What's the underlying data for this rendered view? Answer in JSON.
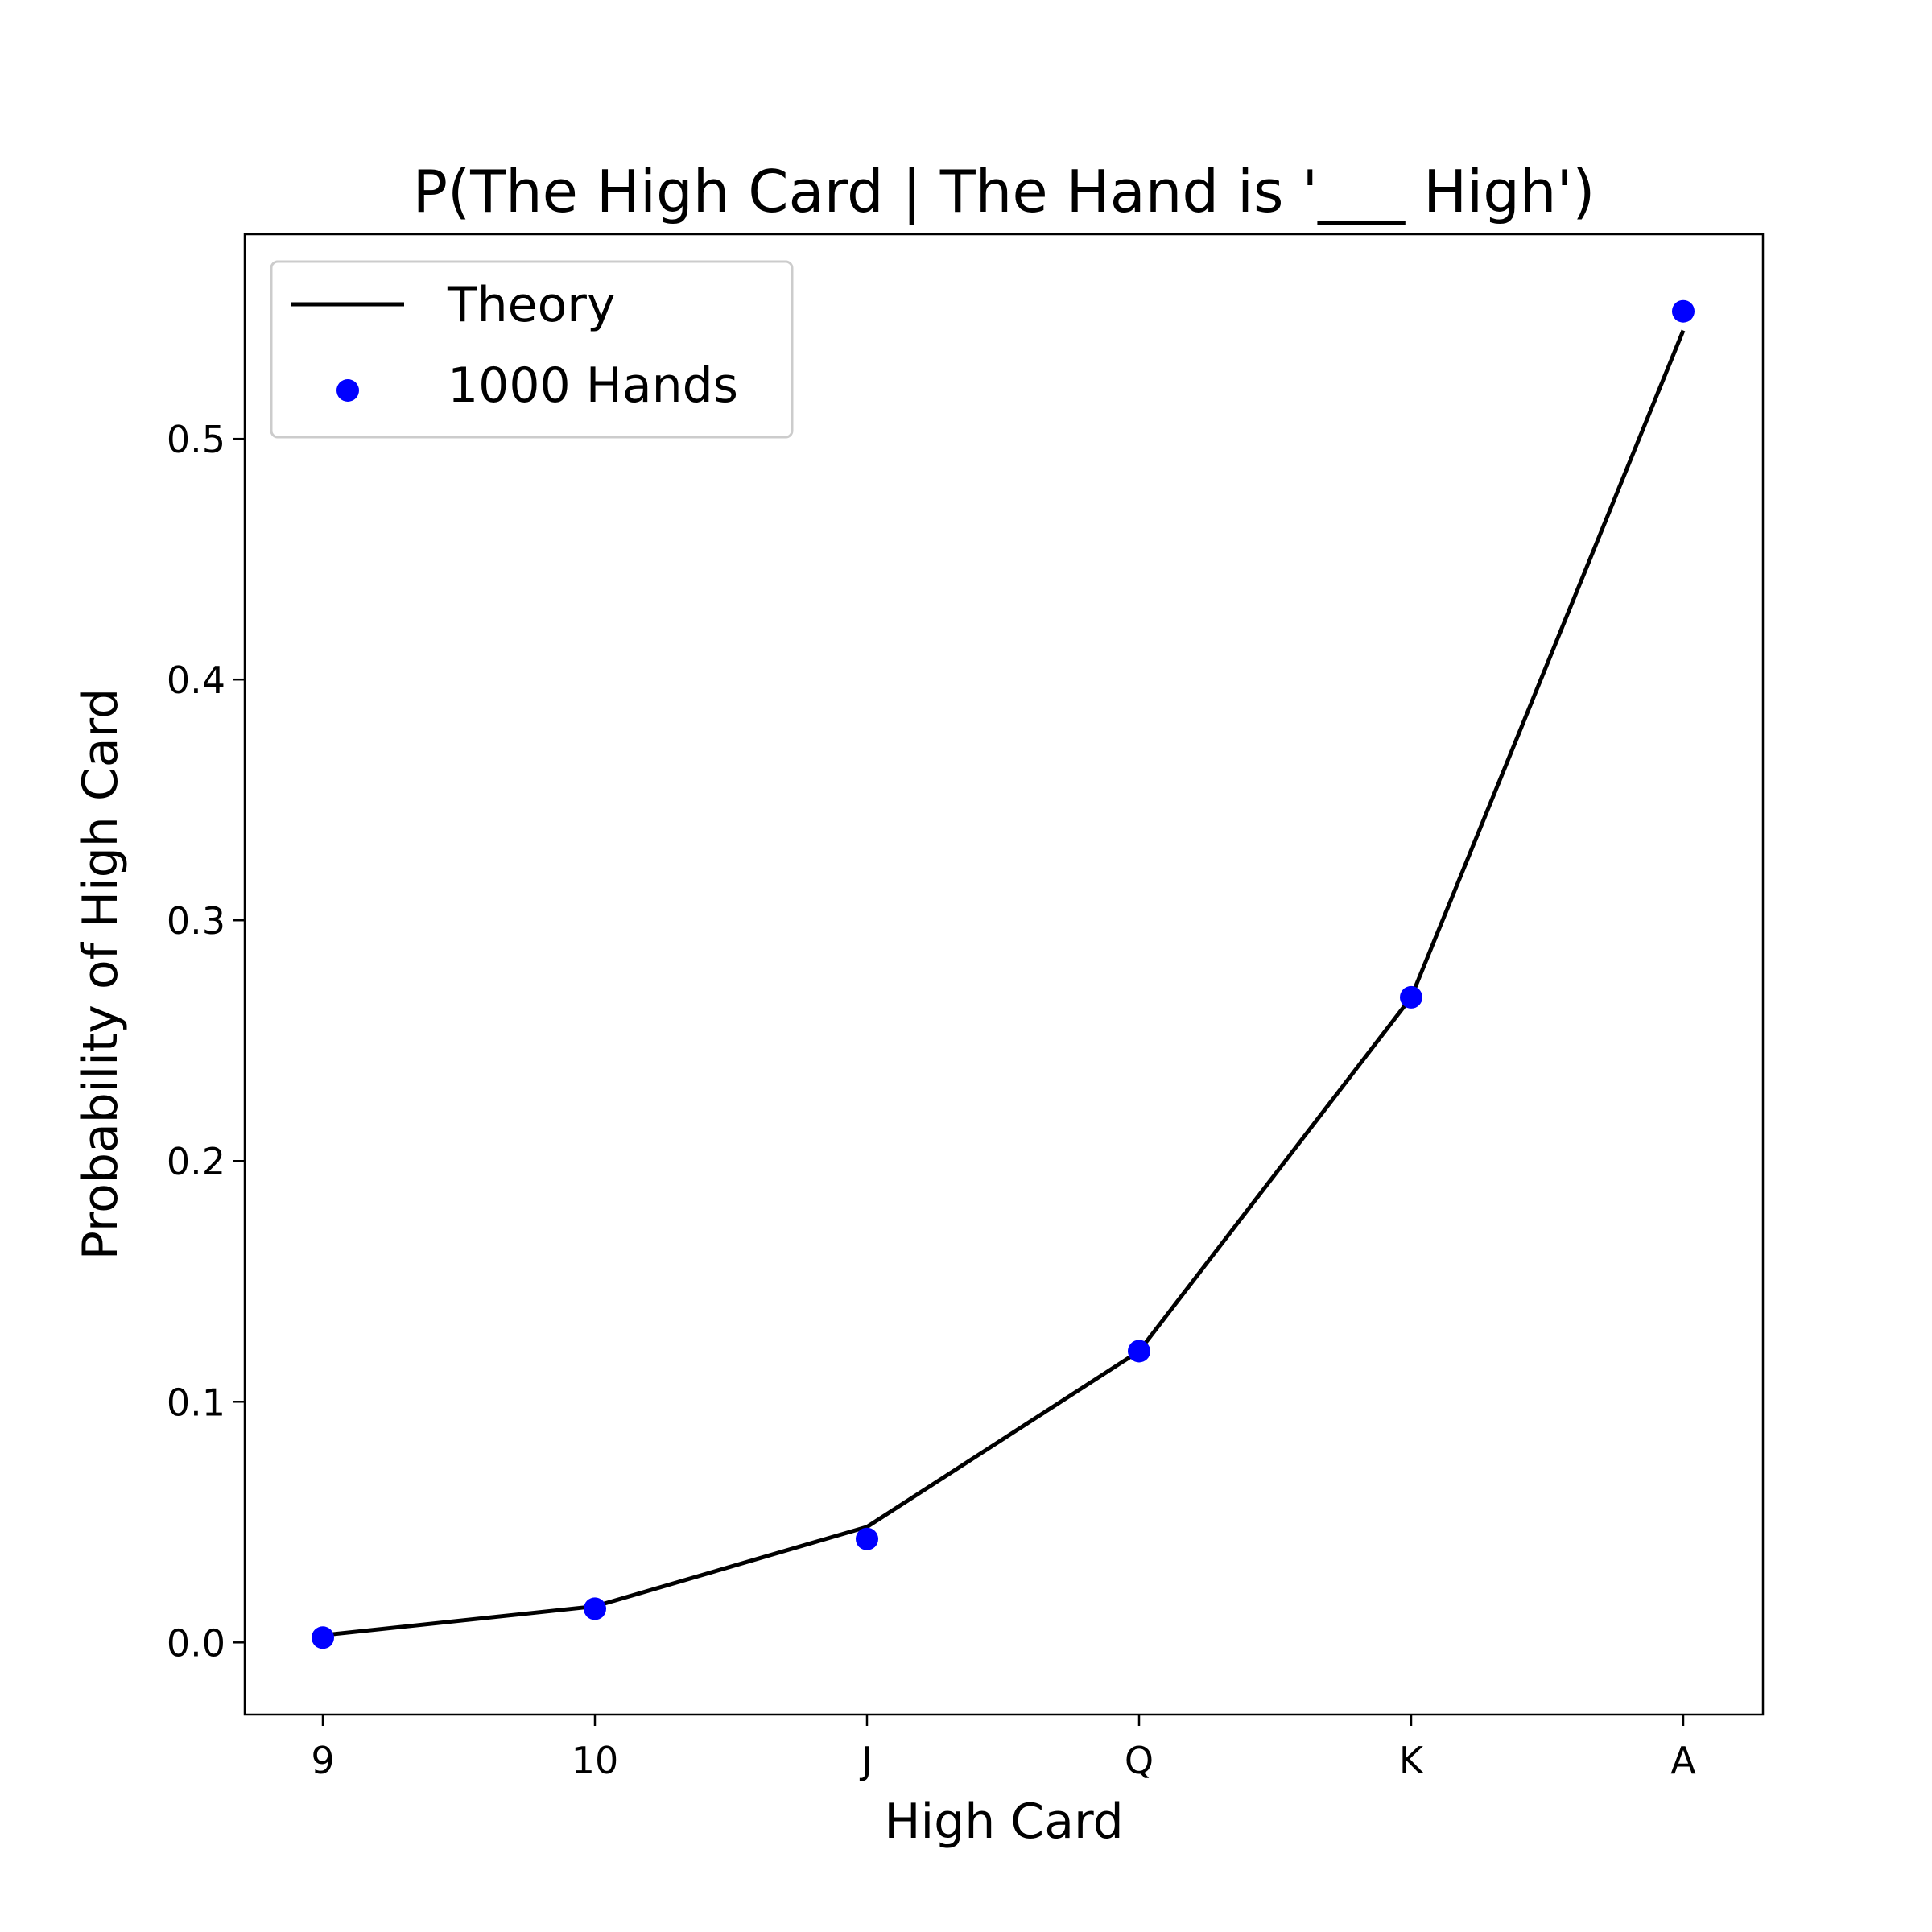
{
  "chart_data": {
    "type": "line",
    "title": "P(The High Card  | The Hand is '___ High')",
    "xlabel": "High Card",
    "ylabel": "Probability of High Card",
    "categories": [
      "9",
      "10",
      "J",
      "Q",
      "K",
      "A"
    ],
    "ylim": [
      -0.03,
      0.585
    ],
    "yticks": [
      "0.0",
      "0.1",
      "0.2",
      "0.3",
      "0.4",
      "0.5"
    ],
    "grid": false,
    "legend_position": "upper-left",
    "series": [
      {
        "name": "Theory",
        "kind": "line",
        "color": "#000000",
        "values": [
          0.003,
          0.015,
          0.048,
          0.121,
          0.268,
          0.545
        ]
      },
      {
        "name": "1000 Hands",
        "kind": "scatter",
        "color": "#0000ff",
        "values": [
          0.002,
          0.014,
          0.043,
          0.121,
          0.268,
          0.553
        ]
      }
    ]
  }
}
